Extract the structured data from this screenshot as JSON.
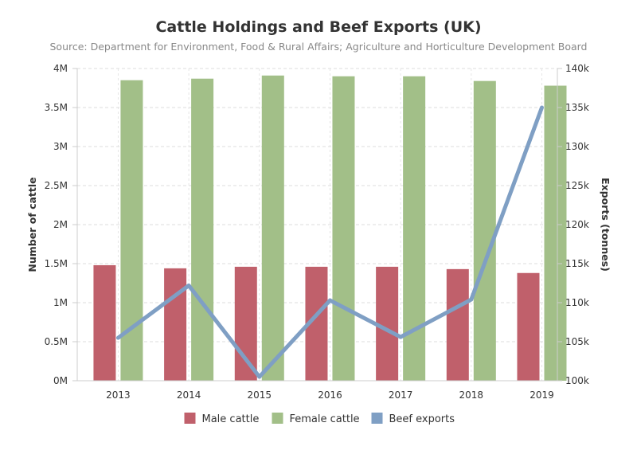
{
  "chart_data": {
    "type": "bar",
    "title": "Cattle Holdings and Beef Exports (UK)",
    "subtitle": "Source: Department for Environment, Food & Rural Affairs; Agriculture and Horticulture Development Board",
    "categories": [
      "2013",
      "2014",
      "2015",
      "2016",
      "2017",
      "2018",
      "2019"
    ],
    "y_left": {
      "label": "Number of cattle",
      "range": [
        0,
        4000000
      ],
      "ticks": [
        {
          "value": 0,
          "label": "0M"
        },
        {
          "value": 500000,
          "label": "0.5M"
        },
        {
          "value": 1000000,
          "label": "1M"
        },
        {
          "value": 1500000,
          "label": "1.5M"
        },
        {
          "value": 2000000,
          "label": "2M"
        },
        {
          "value": 2500000,
          "label": "2.5M"
        },
        {
          "value": 3000000,
          "label": "3M"
        },
        {
          "value": 3500000,
          "label": "3.5M"
        },
        {
          "value": 4000000,
          "label": "4M"
        }
      ]
    },
    "y_right": {
      "label": "Exports (tonnes)",
      "range": [
        100000,
        140000
      ],
      "ticks": [
        {
          "value": 100000,
          "label": "100k"
        },
        {
          "value": 105000,
          "label": "105k"
        },
        {
          "value": 110000,
          "label": "110k"
        },
        {
          "value": 115000,
          "label": "115k"
        },
        {
          "value": 120000,
          "label": "120k"
        },
        {
          "value": 125000,
          "label": "125k"
        },
        {
          "value": 130000,
          "label": "130k"
        },
        {
          "value": 135000,
          "label": "135k"
        },
        {
          "value": 140000,
          "label": "140k"
        }
      ]
    },
    "series": [
      {
        "name": "Male cattle",
        "type": "bar",
        "axis": "left",
        "color": "#c0606b",
        "values": [
          1480000,
          1440000,
          1460000,
          1460000,
          1460000,
          1430000,
          1380000
        ]
      },
      {
        "name": "Female cattle",
        "type": "bar",
        "axis": "left",
        "color": "#a2bf88",
        "values": [
          3850000,
          3870000,
          3910000,
          3900000,
          3900000,
          3840000,
          3780000
        ]
      },
      {
        "name": "Beef exports",
        "type": "line",
        "axis": "right",
        "color": "#7f9fc4",
        "values": [
          105500,
          112200,
          100500,
          110300,
          105600,
          110400,
          135000
        ]
      }
    ],
    "grid": true,
    "legend_position": "bottom"
  }
}
